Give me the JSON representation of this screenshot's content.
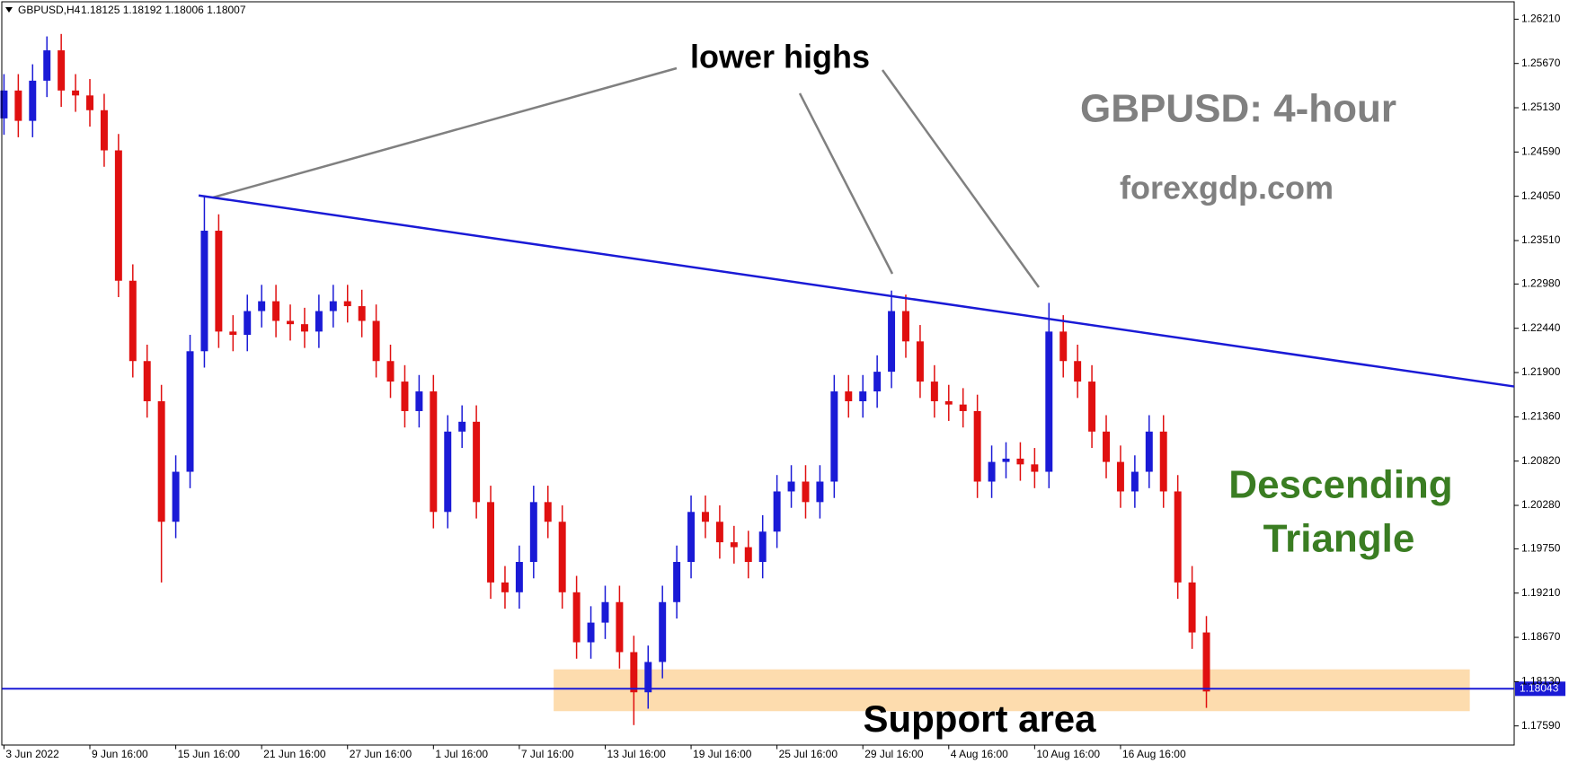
{
  "chart_data": {
    "type": "candlestick",
    "title": "GBPUSD,H4",
    "ohlc_readout": "1.18125 1.18192 1.18006 1.18007",
    "up_color": "#1a1ad6",
    "down_color": "#e01010",
    "xlim": [
      -0.14,
      105.5
    ],
    "ylim": [
      1.17361,
      1.2642
    ],
    "xticks": [
      {
        "value": 0,
        "label": "3 Jun 2022"
      },
      {
        "value": 6,
        "label": "9 Jun 16:00"
      },
      {
        "value": 12,
        "label": "15 Jun 16:00"
      },
      {
        "value": 18,
        "label": "21 Jun 16:00"
      },
      {
        "value": 24,
        "label": "27 Jun 16:00"
      },
      {
        "value": 30,
        "label": "1 Jul 16:00"
      },
      {
        "value": 36,
        "label": "7 Jul 16:00"
      },
      {
        "value": 42,
        "label": "13 Jul 16:00"
      },
      {
        "value": 48,
        "label": "19 Jul 16:00"
      },
      {
        "value": 54,
        "label": "25 Jul 16:00"
      },
      {
        "value": 60,
        "label": "29 Jul 16:00"
      },
      {
        "value": 66,
        "label": "4 Aug 16:00"
      },
      {
        "value": 72,
        "label": "10 Aug 16:00"
      },
      {
        "value": 78,
        "label": "16 Aug 16:00"
      }
    ],
    "yticks": [
      {
        "value": 1.2621,
        "label": "1.26210"
      },
      {
        "value": 1.2567,
        "label": "1.25670"
      },
      {
        "value": 1.2513,
        "label": "1.25130"
      },
      {
        "value": 1.2459,
        "label": "1.24590"
      },
      {
        "value": 1.2405,
        "label": "1.24050"
      },
      {
        "value": 1.2351,
        "label": "1.23510"
      },
      {
        "value": 1.2298,
        "label": "1.22980"
      },
      {
        "value": 1.2244,
        "label": "1.22440"
      },
      {
        "value": 1.219,
        "label": "1.21900"
      },
      {
        "value": 1.2136,
        "label": "1.21360"
      },
      {
        "value": 1.2082,
        "label": "1.20820"
      },
      {
        "value": 1.2028,
        "label": "1.20280"
      },
      {
        "value": 1.1975,
        "label": "1.19750"
      },
      {
        "value": 1.1921,
        "label": "1.19210"
      },
      {
        "value": 1.1867,
        "label": "1.18670"
      },
      {
        "value": 1.1813,
        "label": "1.18130"
      },
      {
        "value": 1.1759,
        "label": "1.17590"
      }
    ],
    "open": [
      1.25,
      1.2534,
      1.2497,
      1.2546,
      1.2583,
      1.2534,
      1.2528,
      1.251,
      1.2461,
      1.2302,
      1.2204,
      1.2155,
      1.2008,
      1.2069,
      1.2216,
      1.2363,
      1.224,
      1.2236,
      1.2265,
      1.2277,
      1.2253,
      1.2249,
      1.224,
      1.2265,
      1.2277,
      1.2271,
      1.2253,
      1.2204,
      1.2179,
      1.2143,
      1.2167,
      1.202,
      1.2118,
      1.213,
      1.2032,
      1.1934,
      1.1922,
      1.1959,
      1.2032,
      1.2008,
      1.1922,
      1.1861,
      1.1885,
      1.191,
      1.1849,
      1.18,
      1.1837,
      1.191,
      1.1959,
      1.202,
      1.2008,
      1.1983,
      1.1977,
      1.1959,
      1.1996,
      1.2045,
      1.2057,
      1.2032,
      1.2057,
      1.2167,
      1.2155,
      1.2167,
      1.2191,
      1.2265,
      1.2228,
      1.2179,
      1.2155,
      1.2151,
      1.2143,
      1.2057,
      1.2081,
      1.2085,
      1.2078,
      1.2069,
      1.224,
      1.2204,
      1.2179,
      1.2118,
      1.2081,
      1.2045,
      1.2069,
      1.2118,
      1.2045,
      1.1934,
      1.1873
    ],
    "high": [
      1.2554,
      1.2554,
      1.2566,
      1.26,
      1.2603,
      1.2554,
      1.2548,
      1.253,
      1.2481,
      1.2322,
      1.2224,
      1.2175,
      1.2089,
      1.2236,
      1.2405,
      1.2383,
      1.226,
      1.2285,
      1.2297,
      1.2297,
      1.2273,
      1.2269,
      1.2285,
      1.2297,
      1.2297,
      1.2291,
      1.2273,
      1.2224,
      1.2199,
      1.2187,
      1.2187,
      1.2138,
      1.215,
      1.215,
      1.2052,
      1.1954,
      1.1979,
      1.2052,
      1.2052,
      1.2028,
      1.1942,
      1.1905,
      1.193,
      1.193,
      1.1869,
      1.1857,
      1.193,
      1.1979,
      1.204,
      1.204,
      1.2028,
      1.2003,
      1.1997,
      1.2016,
      1.2065,
      1.2077,
      1.2077,
      1.2077,
      1.2187,
      1.2187,
      1.2187,
      1.2211,
      1.229,
      1.2285,
      1.2248,
      1.2199,
      1.2175,
      1.2171,
      1.2163,
      1.2101,
      1.2105,
      1.2105,
      1.2098,
      1.2275,
      1.226,
      1.2224,
      1.2199,
      1.2138,
      1.2101,
      1.2089,
      1.2138,
      1.2138,
      1.2065,
      1.1954,
      1.1893
    ],
    "low": [
      1.248,
      1.2477,
      1.2477,
      1.2526,
      1.2514,
      1.2508,
      1.249,
      1.2441,
      1.2282,
      1.2184,
      1.2135,
      1.1934,
      1.1988,
      1.2049,
      1.2196,
      1.222,
      1.2216,
      1.2216,
      1.2245,
      1.2233,
      1.2229,
      1.222,
      1.222,
      1.2245,
      1.2251,
      1.2233,
      1.2184,
      1.2159,
      1.2123,
      1.2123,
      1.2,
      1.2,
      1.2098,
      1.2012,
      1.1914,
      1.1902,
      1.1902,
      1.1939,
      1.1988,
      1.1902,
      1.1841,
      1.1841,
      1.1865,
      1.1829,
      1.176,
      1.178,
      1.1817,
      1.189,
      1.1939,
      1.1988,
      1.1963,
      1.1957,
      1.1939,
      1.1939,
      1.1976,
      1.2025,
      1.2012,
      1.2012,
      1.2037,
      1.2135,
      1.2135,
      1.2147,
      1.2171,
      1.2208,
      1.2159,
      1.2135,
      1.2131,
      1.2123,
      1.2037,
      1.2037,
      1.2061,
      1.2058,
      1.2049,
      1.2049,
      1.2184,
      1.2159,
      1.2098,
      1.2061,
      1.2025,
      1.2025,
      1.2049,
      1.2025,
      1.1914,
      1.1853,
      1.1781
    ],
    "close": [
      1.2534,
      1.2497,
      1.2546,
      1.2583,
      1.2534,
      1.2528,
      1.251,
      1.2461,
      1.2302,
      1.2204,
      1.2155,
      1.2008,
      1.2069,
      1.2216,
      1.2363,
      1.224,
      1.2236,
      1.2265,
      1.2277,
      1.2253,
      1.2249,
      1.224,
      1.2265,
      1.2277,
      1.2271,
      1.2253,
      1.2204,
      1.2179,
      1.2143,
      1.2167,
      1.202,
      1.2118,
      1.213,
      1.2032,
      1.1934,
      1.1922,
      1.1959,
      1.2032,
      1.2008,
      1.1922,
      1.1861,
      1.1885,
      1.191,
      1.1849,
      1.18,
      1.1837,
      1.191,
      1.1959,
      1.202,
      1.2008,
      1.1983,
      1.1977,
      1.1959,
      1.1996,
      1.2045,
      1.2057,
      1.2032,
      1.2057,
      1.2167,
      1.2155,
      1.2167,
      1.2191,
      1.2265,
      1.2228,
      1.2179,
      1.2155,
      1.2151,
      1.2143,
      1.2057,
      1.2081,
      1.2085,
      1.2078,
      1.2069,
      1.224,
      1.2204,
      1.2179,
      1.2118,
      1.2081,
      1.2045,
      1.2069,
      1.2118,
      1.2045,
      1.1934,
      1.1873,
      1.1801
    ],
    "current_price": 1.18043,
    "current_price_color": "#1a1ad6",
    "trendline": {
      "x": [
        13.6,
        105.5
      ],
      "y": [
        1.2406,
        1.2173
      ],
      "color": "#1a1ad6"
    },
    "support_zone": {
      "x": [
        38.4,
        102.4
      ],
      "y": [
        1.1777,
        1.1828
      ],
      "color": "#fddcae"
    },
    "annotations": {
      "lower_highs": "lower highs",
      "watermark": "GBPUSD: 4-hour",
      "site": "forexgdp.com",
      "pattern": [
        "Descending",
        "Triangle"
      ],
      "support": "Support area"
    }
  }
}
